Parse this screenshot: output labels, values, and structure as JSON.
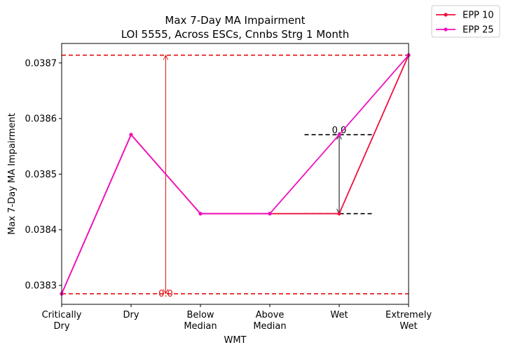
{
  "chart_data": {
    "type": "line",
    "title": "Max 7-Day MA Impairment",
    "subtitle": "LOI 5555, Across ESCs, Cnnbs Strg 1 Month",
    "xlabel": "WMT",
    "ylabel": "Max 7-Day MA Impairment",
    "categories": [
      [
        "Critically",
        "Dry"
      ],
      [
        "Dry"
      ],
      [
        "Below",
        "Median"
      ],
      [
        "Above",
        "Median"
      ],
      [
        "Wet"
      ],
      [
        "Extremely",
        "Wet"
      ]
    ],
    "xlim": [
      0,
      5
    ],
    "ylim": [
      0.038266,
      0.038735
    ],
    "yticks": [
      0.0383,
      0.0384,
      0.0385,
      0.0386,
      0.0387
    ],
    "ytick_labels": [
      "0.0383",
      "0.0384",
      "0.0385",
      "0.0386",
      "0.0387"
    ],
    "grid": false,
    "legend_position": "outside-top-right",
    "series": [
      {
        "name": "EPP 10",
        "color": "#f0103c",
        "values": [
          0.038285,
          0.038571,
          0.038429,
          0.038429,
          0.038429,
          0.038714
        ]
      },
      {
        "name": "EPP 25",
        "color": "#f010c0",
        "values": [
          0.038285,
          0.038571,
          0.038429,
          0.038429,
          0.038571,
          0.038714
        ]
      }
    ],
    "annotations": [
      {
        "kind": "range-arrow",
        "color": "#e01010",
        "x": 1.5,
        "y_from": 0.038285,
        "y_to": 0.038714,
        "label": "0.0",
        "reference_lines": [
          {
            "y": 0.038714,
            "x_from": 0,
            "x_to": 5
          },
          {
            "y": 0.038285,
            "x_from": 0,
            "x_to": 5
          }
        ]
      },
      {
        "kind": "range-arrow",
        "color": "#000000",
        "x": 4,
        "y_from": 0.038429,
        "y_to": 0.038571,
        "label": "0.0",
        "reference_lines": [
          {
            "y": 0.038571,
            "x_from": 3.5,
            "x_to": 4.5
          },
          {
            "y": 0.038429,
            "x_from": 3.5,
            "x_to": 4.5
          }
        ]
      }
    ]
  }
}
